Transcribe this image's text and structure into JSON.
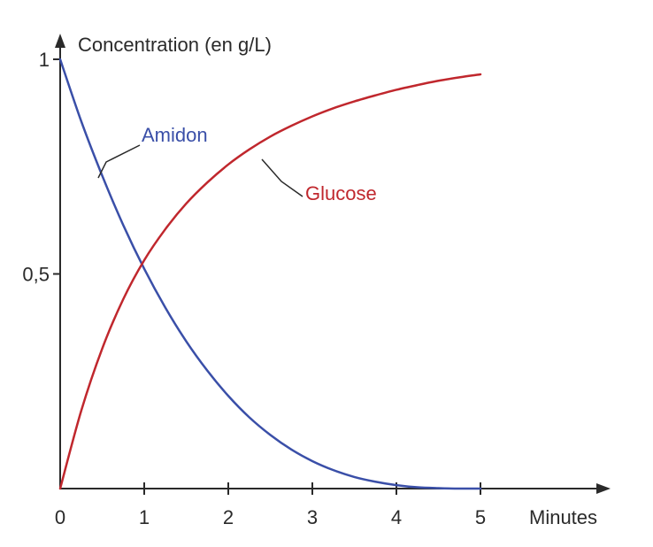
{
  "chart_data": {
    "type": "line",
    "title": "",
    "ylabel": "Concentration (en g/L)",
    "xlabel": "Minutes",
    "xlim": [
      0,
      5
    ],
    "ylim": [
      0,
      1
    ],
    "x_ticks": [
      "0",
      "1",
      "2",
      "3",
      "4",
      "5"
    ],
    "y_ticks": [
      "0,5",
      "1"
    ],
    "grid": false,
    "series": [
      {
        "name": "Amidon",
        "color": "#3a4fa8",
        "x": [
          0,
          0.25,
          0.5,
          0.75,
          1,
          1.25,
          1.5,
          1.75,
          2,
          2.25,
          2.5,
          2.75,
          3,
          3.25,
          3.5,
          3.75,
          4,
          4.25,
          4.5,
          4.75,
          5
        ],
        "y": [
          1.0,
          0.856,
          0.729,
          0.614,
          0.512,
          0.422,
          0.343,
          0.275,
          0.216,
          0.166,
          0.125,
          0.091,
          0.064,
          0.043,
          0.027,
          0.016,
          0.008,
          0.003,
          0.001,
          0.0,
          0.0
        ]
      },
      {
        "name": "Glucose",
        "color": "#c0272d",
        "x": [
          0,
          0.25,
          0.5,
          0.75,
          1,
          1.25,
          1.5,
          1.75,
          2,
          2.25,
          2.5,
          2.75,
          3,
          3.25,
          3.5,
          3.75,
          4,
          4.25,
          4.5,
          4.75,
          5
        ],
        "y": [
          0.0,
          0.181,
          0.326,
          0.441,
          0.532,
          0.604,
          0.664,
          0.713,
          0.755,
          0.79,
          0.82,
          0.845,
          0.867,
          0.886,
          0.902,
          0.916,
          0.929,
          0.94,
          0.95,
          0.958,
          0.965
        ]
      }
    ]
  }
}
